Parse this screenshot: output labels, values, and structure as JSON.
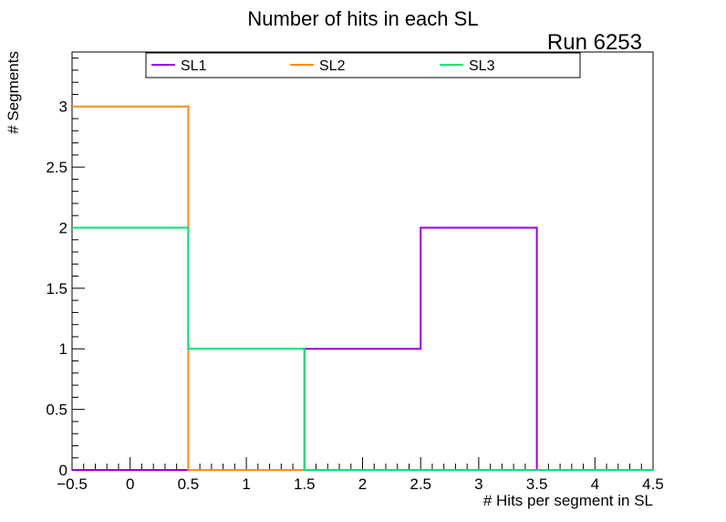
{
  "chart_data": {
    "type": "step",
    "title": "Number of hits in each SL",
    "subtitle": "Run 6253",
    "xlabel": "# Hits per segment in SL",
    "ylabel": "# Segments",
    "xlim": [
      -0.5,
      4.5
    ],
    "ylim": [
      0,
      3.45
    ],
    "bin_edges": [
      -0.5,
      0.5,
      1.5,
      2.5,
      3.5,
      4.5
    ],
    "x_ticks": [
      "−0.5",
      "0",
      "0.5",
      "1",
      "1.5",
      "2",
      "2.5",
      "3",
      "3.5",
      "4",
      "4.5"
    ],
    "y_ticks": [
      "0",
      "0.5",
      "1",
      "1.5",
      "2",
      "2.5",
      "3"
    ],
    "legend_position": "top",
    "grid": false,
    "series": [
      {
        "name": "SL1",
        "color": "#9a00e0",
        "values": [
          0,
          0,
          1,
          2,
          0
        ]
      },
      {
        "name": "SL2",
        "color": "#ff8c1a",
        "values": [
          3,
          0,
          0,
          0,
          0
        ]
      },
      {
        "name": "SL3",
        "color": "#00e676",
        "values": [
          2,
          1,
          0,
          0,
          0
        ]
      }
    ]
  }
}
